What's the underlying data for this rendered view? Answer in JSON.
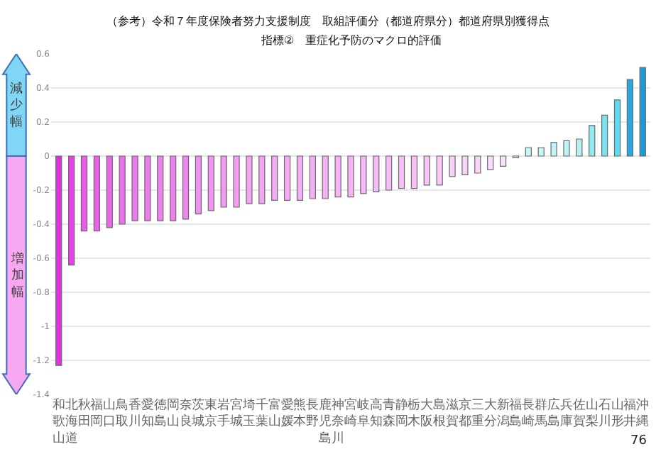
{
  "chart_data": {
    "type": "bar",
    "title": "（参考）令和７年度保険者努力支援制度　取組評価分（都道府県分）都道府県別獲得点",
    "subtitle": "指標②　重症化予防のマクロ的評価",
    "categories": [
      "和歌山",
      "北海道",
      "秋田",
      "福岡",
      "山口",
      "鳥取",
      "香川",
      "愛知",
      "徳島",
      "岡山",
      "奈良",
      "茨城",
      "東京",
      "岩手",
      "宮城",
      "埼玉",
      "千葉",
      "富山",
      "愛媛",
      "熊本",
      "長野",
      "鹿児島",
      "神奈川",
      "宮崎",
      "岐阜",
      "高知",
      "青森",
      "静岡",
      "栃木",
      "大阪",
      "島根",
      "滋賀",
      "京都",
      "三重",
      "大分",
      "新潟",
      "福島",
      "長崎",
      "群馬",
      "広島",
      "兵庫",
      "佐賀",
      "山梨",
      "石川",
      "山形",
      "福井",
      "沖縄"
    ],
    "values": [
      -1.23,
      -0.64,
      -0.44,
      -0.44,
      -0.42,
      -0.4,
      -0.38,
      -0.38,
      -0.38,
      -0.38,
      -0.37,
      -0.34,
      -0.32,
      -0.3,
      -0.3,
      -0.28,
      -0.28,
      -0.26,
      -0.26,
      -0.26,
      -0.25,
      -0.25,
      -0.24,
      -0.24,
      -0.22,
      -0.21,
      -0.2,
      -0.19,
      -0.19,
      -0.17,
      -0.17,
      -0.12,
      -0.11,
      -0.1,
      -0.08,
      -0.06,
      -0.01,
      0.05,
      0.05,
      0.08,
      0.09,
      0.1,
      0.18,
      0.24,
      0.33,
      0.45,
      0.52
    ],
    "colors": [
      "#e030e0",
      "#e640e6",
      "#ea5cea",
      "#ea60ea",
      "#ec66ec",
      "#ee70ee",
      "#ee78ee",
      "#ef7cef",
      "#ef80ef",
      "#ef80ef",
      "#f084f0",
      "#f090f0",
      "#f294f2",
      "#f29af2",
      "#f39ef3",
      "#f4a2f4",
      "#f4a6f4",
      "#f5aaf5",
      "#f5acf5",
      "#f5aef5",
      "#f5b0f5",
      "#f6b2f6",
      "#f6b4f6",
      "#f6b4f6",
      "#f6b8f6",
      "#f7bcf7",
      "#f7bef7",
      "#f7c0f7",
      "#f7c0f7",
      "#f8c6f8",
      "#f8c8f8",
      "#f9d2f9",
      "#f9d4f9",
      "#f9d6f9",
      "#fadcfa",
      "#fbe2fb",
      "#fcecfc",
      "#c8f6f8",
      "#c8f6f8",
      "#c0f4f6",
      "#bcf2f6",
      "#b4f0f4",
      "#90eaf2",
      "#78e4f0",
      "#5cdcee",
      "#2aa8e0",
      "#1e9ad8"
    ],
    "ylim": [
      -1.4,
      0.6
    ],
    "yticks": [
      0.6,
      0.4,
      0.2,
      0,
      -0.2,
      -0.4,
      -0.6,
      -0.8,
      -1,
      -1.2,
      -1.4
    ],
    "grid": "y",
    "annotations": [
      "減少幅",
      "増加幅",
      "76"
    ]
  }
}
